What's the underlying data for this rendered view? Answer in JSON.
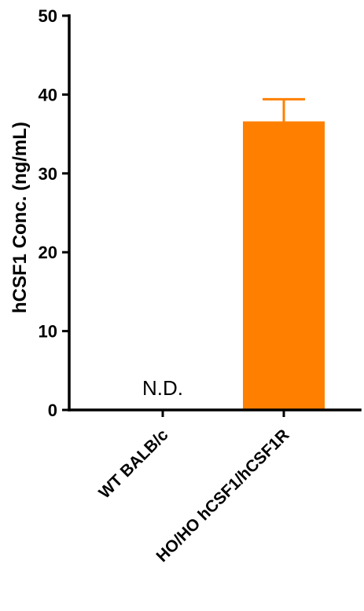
{
  "chart_data": {
    "type": "bar",
    "title": "",
    "xlabel": "",
    "ylabel": "hCSF1 Conc. (ng/mL)",
    "ylim": [
      0,
      50
    ],
    "yticks": [
      0,
      10,
      20,
      30,
      40,
      50
    ],
    "grid": false,
    "legend": "none",
    "categories": [
      "WT BALB/c",
      "HO/HO hCSF1/hCSF1R"
    ],
    "values": [
      0,
      36.6
    ],
    "errors": [
      null,
      2.8
    ],
    "annotations": [
      "N.D.",
      ""
    ],
    "bar_color": "#ff8000",
    "axis_color": "#000000"
  }
}
